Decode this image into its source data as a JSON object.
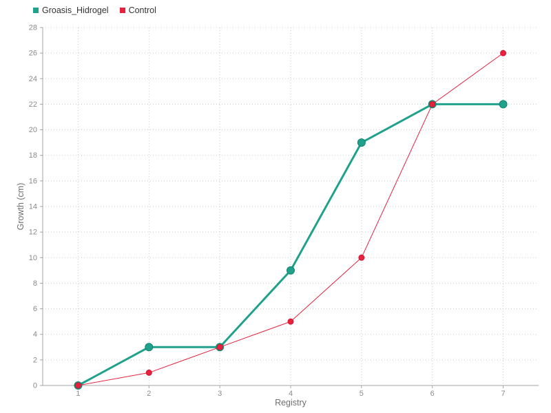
{
  "chart_data": {
    "type": "line",
    "title": "",
    "xlabel": "Registry",
    "ylabel": "Growth (cm)",
    "x": [
      1,
      2,
      3,
      4,
      5,
      6,
      7
    ],
    "series": [
      {
        "name": "Groasis_Hidrogel",
        "color": "#1fa18b",
        "marker_stroke": "#11826f",
        "line_width": 3,
        "marker_radius": 5.5,
        "values": [
          0,
          3,
          3,
          9,
          19,
          22,
          22
        ]
      },
      {
        "name": "Control",
        "color": "#e8213d",
        "marker_stroke": "#cf1530",
        "line_width": 1,
        "marker_radius": 4,
        "values": [
          0,
          1,
          3,
          5,
          10,
          22,
          26
        ]
      }
    ],
    "ylim": [
      0,
      28
    ],
    "y_tick_step": 2,
    "grid": "dotted",
    "legend_position": "top-left",
    "background": "#ffffff",
    "grid_color": "#c9c9c9",
    "axis_color": "#a3a3a3",
    "tick_label_color": "#8a8a8a",
    "axis_title_color": "#6e6e6e",
    "legend_text_color": "#333333"
  }
}
